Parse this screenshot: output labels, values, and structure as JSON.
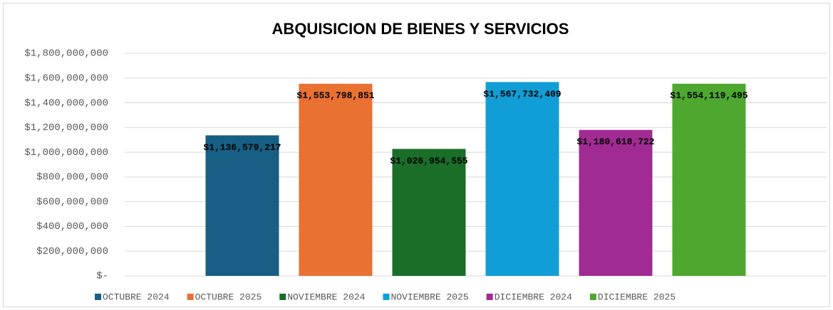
{
  "chart_data": {
    "type": "bar",
    "title": "ABQUISICION  DE BIENES Y SERVICIOS",
    "categories": [
      null
    ],
    "series": [
      {
        "name": "OCTUBRE 2024",
        "color": "#175f84",
        "values": [
          1136579217
        ],
        "value_labels": [
          "$1,136,579,217"
        ]
      },
      {
        "name": "OCTUBRE 2025",
        "color": "#e97132",
        "values": [
          1553798851
        ],
        "value_labels": [
          "$1,553,798,851"
        ]
      },
      {
        "name": "NOVIEMBRE 2024",
        "color": "#1a6e28",
        "values": [
          1026954555
        ],
        "value_labels": [
          "$1,026,954,555"
        ]
      },
      {
        "name": "NOVIEMBRE 2025",
        "color": "#119ed6",
        "values": [
          1567732409
        ],
        "value_labels": [
          "$1,567,732,409"
        ]
      },
      {
        "name": "DICIEMBRE 2024",
        "color": "#a02b93",
        "values": [
          1180618722
        ],
        "value_labels": [
          "$1,180,618,722"
        ]
      },
      {
        "name": "DICIEMBRE 2025",
        "color": "#4ea72e",
        "values": [
          1554119495
        ],
        "value_labels": [
          "$1,554,119,495"
        ]
      }
    ],
    "ylim": [
      0,
      1800000000
    ],
    "yticks": [
      {
        "value": 0,
        "label": "$-"
      },
      {
        "value": 200000000,
        "label": "$200,000,000"
      },
      {
        "value": 400000000,
        "label": "$400,000,000"
      },
      {
        "value": 600000000,
        "label": "$600,000,000"
      },
      {
        "value": 800000000,
        "label": "$800,000,000"
      },
      {
        "value": 1000000000,
        "label": "$1,000,000,000"
      },
      {
        "value": 1200000000,
        "label": "$1,200,000,000"
      },
      {
        "value": 1400000000,
        "label": "$1,400,000,000"
      },
      {
        "value": 1600000000,
        "label": "$1,600,000,000"
      },
      {
        "value": 1800000000,
        "label": "$1,800,000,000"
      }
    ],
    "grid": true,
    "legend": "bottom"
  }
}
